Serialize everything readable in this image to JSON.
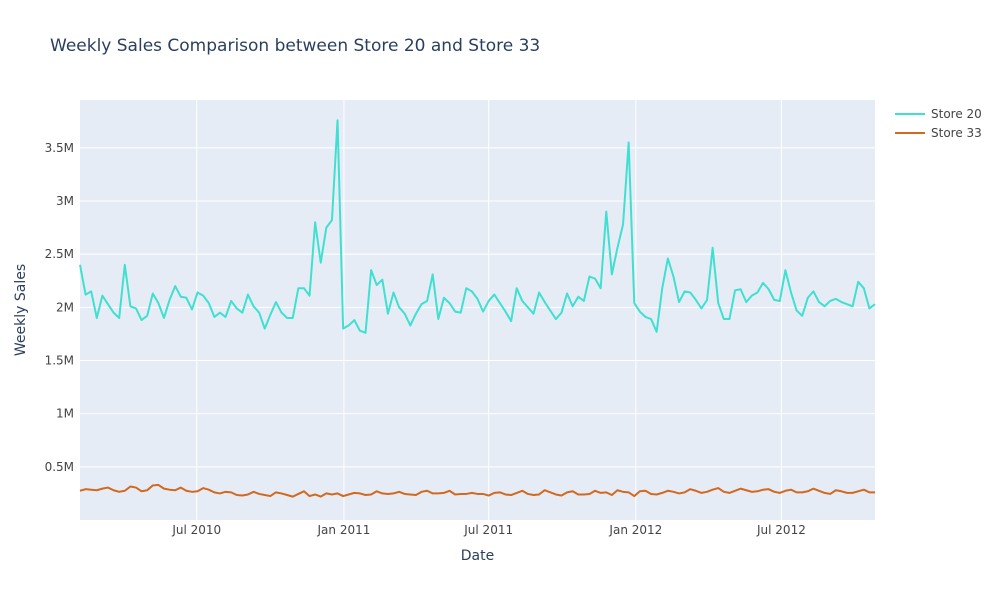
{
  "chart_data": {
    "type": "line",
    "title": "Weekly Sales Comparison between Store 20 and Store 33",
    "xlabel": "Date",
    "ylabel": "Weekly Sales",
    "grid": true,
    "legend_position": "top-right outside",
    "x_start": "2010-02-05",
    "x_step_days": 7,
    "xlim": [
      "2010-02-05",
      "2012-10-26"
    ],
    "ylim": [
      0,
      3950000
    ],
    "x_ticks": [
      {
        "date": "2010-07-01",
        "label": "Jul 2010"
      },
      {
        "date": "2011-01-01",
        "label": "Jan 2011"
      },
      {
        "date": "2011-07-01",
        "label": "Jul 2011"
      },
      {
        "date": "2012-01-01",
        "label": "Jan 2012"
      },
      {
        "date": "2012-07-01",
        "label": "Jul 2012"
      }
    ],
    "y_ticks": [
      {
        "value": 500000,
        "label": "0.5M"
      },
      {
        "value": 1000000,
        "label": "1M"
      },
      {
        "value": 1500000,
        "label": "1.5M"
      },
      {
        "value": 2000000,
        "label": "2M"
      },
      {
        "value": 2500000,
        "label": "2.5M"
      },
      {
        "value": 3000000,
        "label": "3M"
      },
      {
        "value": 3500000,
        "label": "3.5M"
      }
    ],
    "series": [
      {
        "name": "Store 20",
        "color": "#40e0d0",
        "values": [
          2400000,
          2120000,
          2150000,
          1900000,
          2110000,
          2030000,
          1950000,
          1900000,
          2400000,
          2010000,
          1990000,
          1880000,
          1920000,
          2130000,
          2040000,
          1900000,
          2070000,
          2200000,
          2100000,
          2090000,
          1980000,
          2140000,
          2110000,
          2040000,
          1910000,
          1950000,
          1910000,
          2060000,
          1990000,
          1950000,
          2120000,
          2010000,
          1950000,
          1800000,
          1930000,
          2050000,
          1950000,
          1900000,
          1900000,
          2180000,
          2180000,
          2110000,
          2800000,
          2420000,
          2750000,
          2820000,
          3760000,
          1800000,
          1830000,
          1880000,
          1780000,
          1760000,
          2350000,
          2210000,
          2260000,
          1940000,
          2140000,
          2000000,
          1940000,
          1830000,
          1940000,
          2030000,
          2060000,
          2310000,
          1890000,
          2090000,
          2040000,
          1960000,
          1950000,
          2180000,
          2150000,
          2080000,
          1960000,
          2060000,
          2120000,
          2040000,
          1960000,
          1870000,
          2180000,
          2060000,
          2000000,
          1940000,
          2140000,
          2050000,
          1970000,
          1890000,
          1950000,
          2130000,
          2010000,
          2100000,
          2060000,
          2290000,
          2270000,
          2180000,
          2900000,
          2310000,
          2560000,
          2780000,
          3550000,
          2040000,
          1960000,
          1910000,
          1890000,
          1770000,
          2180000,
          2460000,
          2290000,
          2050000,
          2150000,
          2140000,
          2070000,
          1990000,
          2070000,
          2560000,
          2040000,
          1890000,
          1890000,
          2160000,
          2170000,
          2050000,
          2110000,
          2140000,
          2230000,
          2170000,
          2070000,
          2060000,
          2350000,
          2140000,
          1970000,
          1920000,
          2090000,
          2150000,
          2050000,
          2010000,
          2060000,
          2080000,
          2050000,
          2030000,
          2010000,
          2240000,
          2180000,
          1990000,
          2030000
        ]
      },
      {
        "name": "Store 33",
        "color": "#d2691e",
        "values": [
          275000,
          290000,
          285000,
          280000,
          295000,
          305000,
          280000,
          265000,
          275000,
          315000,
          305000,
          270000,
          280000,
          325000,
          330000,
          295000,
          285000,
          280000,
          305000,
          275000,
          265000,
          270000,
          300000,
          285000,
          260000,
          250000,
          265000,
          260000,
          235000,
          230000,
          240000,
          265000,
          245000,
          235000,
          225000,
          260000,
          250000,
          235000,
          220000,
          245000,
          270000,
          225000,
          240000,
          220000,
          250000,
          240000,
          250000,
          225000,
          240000,
          255000,
          250000,
          235000,
          240000,
          270000,
          250000,
          245000,
          250000,
          265000,
          245000,
          240000,
          235000,
          265000,
          275000,
          250000,
          250000,
          255000,
          275000,
          240000,
          245000,
          245000,
          255000,
          245000,
          245000,
          230000,
          255000,
          260000,
          240000,
          235000,
          255000,
          275000,
          245000,
          235000,
          240000,
          280000,
          260000,
          240000,
          230000,
          260000,
          270000,
          240000,
          240000,
          245000,
          275000,
          255000,
          260000,
          235000,
          280000,
          265000,
          260000,
          225000,
          270000,
          275000,
          245000,
          240000,
          255000,
          275000,
          265000,
          250000,
          260000,
          290000,
          275000,
          255000,
          265000,
          285000,
          300000,
          265000,
          255000,
          275000,
          295000,
          280000,
          265000,
          270000,
          285000,
          290000,
          265000,
          255000,
          275000,
          285000,
          260000,
          260000,
          270000,
          295000,
          275000,
          255000,
          245000,
          280000,
          270000,
          255000,
          255000,
          270000,
          285000,
          260000,
          260000
        ]
      }
    ]
  }
}
